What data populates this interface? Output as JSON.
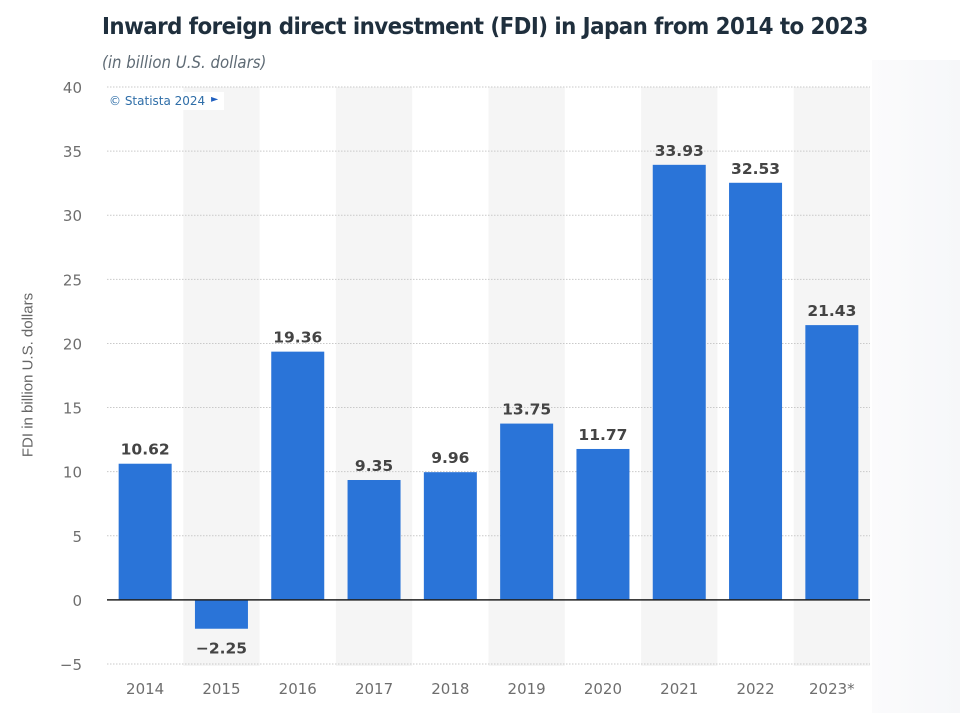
{
  "header": {
    "title": "Inward foreign direct investment (FDI) in Japan from 2014 to 2023",
    "subtitle": "(in billion U.S. dollars)"
  },
  "source_badge": {
    "text": "© Statista 2024",
    "icon": "flag-icon"
  },
  "colors": {
    "bar": "#2a74d8",
    "band": "#f5f5f5",
    "grid": "#c9c9c9",
    "axis": "#222222",
    "label": "#444444",
    "tick": "#6e6e6e"
  },
  "chart_data": {
    "type": "bar",
    "title": "Inward foreign direct investment (FDI) in Japan from 2014 to 2023",
    "subtitle": "(in billion U.S. dollars)",
    "xlabel": "",
    "ylabel": "FDI in billion U.S. dollars",
    "categories": [
      "2014",
      "2015",
      "2016",
      "2017",
      "2018",
      "2019",
      "2020",
      "2021",
      "2022",
      "2023*"
    ],
    "values": [
      10.62,
      -2.25,
      19.36,
      9.35,
      9.96,
      13.75,
      11.77,
      33.93,
      32.53,
      21.43
    ],
    "value_labels": [
      "10.62",
      "−2.25",
      "19.36",
      "9.35",
      "9.96",
      "13.75",
      "11.77",
      "33.93",
      "32.53",
      "21.43"
    ],
    "ylim": [
      -5,
      40
    ],
    "yticks": [
      40,
      35,
      30,
      25,
      20,
      15,
      10,
      5,
      0,
      -5
    ],
    "ytick_labels": [
      "40",
      "35",
      "30",
      "25",
      "20",
      "15",
      "10",
      "5",
      "0",
      "−5"
    ],
    "grid": true,
    "legend": "none"
  }
}
